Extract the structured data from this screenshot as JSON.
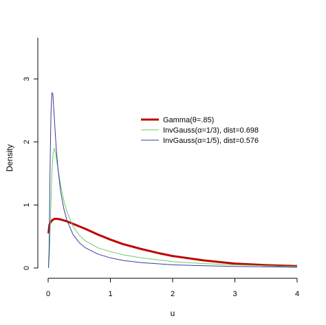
{
  "chart_data": {
    "type": "line",
    "title": "",
    "xlabel": "u",
    "ylabel": "Density",
    "xlim": [
      0,
      4
    ],
    "ylim": [
      0,
      3.6
    ],
    "x_ticks": [
      0,
      1,
      2,
      3,
      4
    ],
    "y_ticks": [
      0,
      1,
      2,
      3
    ],
    "grid": false,
    "legend_placement": "center-right",
    "series": [
      {
        "name": "Gamma(θ=.85)",
        "color": "#c00000",
        "x": [
          0.005,
          0.02,
          0.04,
          0.07,
          0.1,
          0.15,
          0.2,
          0.3,
          0.4,
          0.5,
          0.6,
          0.8,
          1.0,
          1.2,
          1.5,
          1.8,
          2.0,
          2.5,
          3.0,
          3.5,
          4.0
        ],
        "y": [
          0.55,
          0.68,
          0.73,
          0.76,
          0.78,
          0.78,
          0.77,
          0.74,
          0.7,
          0.66,
          0.62,
          0.53,
          0.45,
          0.38,
          0.3,
          0.23,
          0.19,
          0.12,
          0.07,
          0.045,
          0.03
        ]
      },
      {
        "name": "InvGauss(α=1/3), dist=0.698",
        "color": "#66cc66",
        "x": [
          0.005,
          0.02,
          0.04,
          0.06,
          0.08,
          0.1,
          0.12,
          0.15,
          0.2,
          0.25,
          0.3,
          0.4,
          0.5,
          0.6,
          0.8,
          1.0,
          1.2,
          1.5,
          2.0,
          2.5,
          3.0,
          3.5,
          4.0
        ],
        "y": [
          0.0,
          0.2,
          0.85,
          1.5,
          1.82,
          1.9,
          1.82,
          1.62,
          1.32,
          1.08,
          0.9,
          0.66,
          0.52,
          0.43,
          0.32,
          0.26,
          0.21,
          0.16,
          0.1,
          0.07,
          0.05,
          0.035,
          0.025
        ]
      },
      {
        "name": "InvGauss(α=1/5), dist=0.576",
        "color": "#3a3a9a",
        "x": [
          0.005,
          0.015,
          0.03,
          0.045,
          0.06,
          0.075,
          0.09,
          0.11,
          0.13,
          0.16,
          0.2,
          0.25,
          0.3,
          0.4,
          0.5,
          0.6,
          0.8,
          1.0,
          1.2,
          1.5,
          2.0,
          2.5,
          3.0,
          3.5,
          4.0
        ],
        "y": [
          0.0,
          0.3,
          1.5,
          2.45,
          2.78,
          2.77,
          2.55,
          2.2,
          1.9,
          1.55,
          1.22,
          0.95,
          0.76,
          0.53,
          0.4,
          0.32,
          0.22,
          0.16,
          0.12,
          0.085,
          0.05,
          0.035,
          0.025,
          0.018,
          0.012
        ]
      }
    ]
  },
  "legend_line_widths": [
    3,
    1,
    1
  ]
}
